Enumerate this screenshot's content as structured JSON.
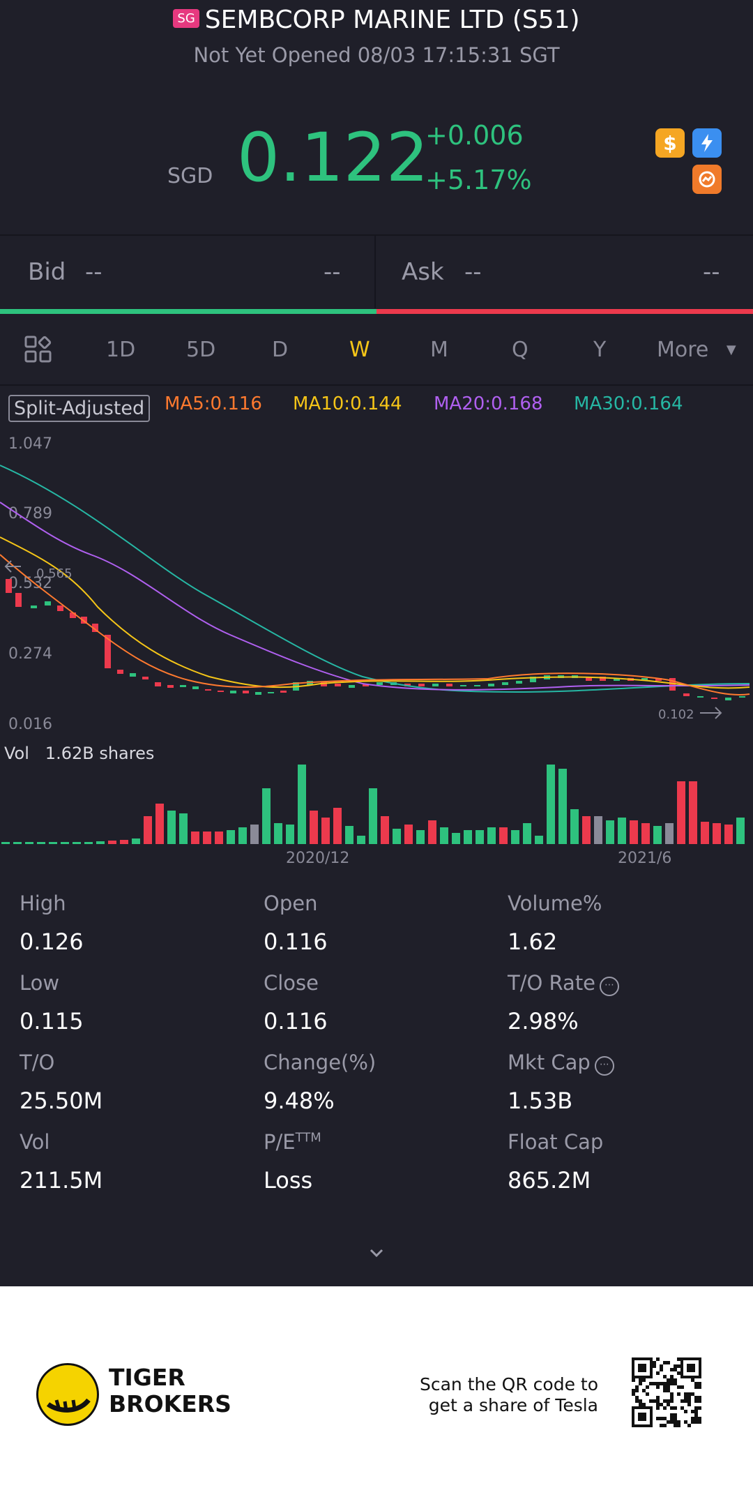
{
  "header": {
    "market_badge": "SG",
    "title": "SEMBCORP MARINE LTD (S51)",
    "status": "Not Yet Opened 08/03 17:15:31 SGT",
    "currency": "SGD",
    "price": "0.122",
    "change": "+0.006",
    "change_pct": "+5.17%"
  },
  "quote": {
    "bid_label": "Bid",
    "bid_price": "--",
    "bid_size": "--",
    "ask_label": "Ask",
    "ask_price": "--",
    "ask_size": "--"
  },
  "tabs": [
    {
      "label": "1D"
    },
    {
      "label": "5D"
    },
    {
      "label": "D"
    },
    {
      "label": "W"
    },
    {
      "label": "M"
    },
    {
      "label": "Q"
    },
    {
      "label": "Y"
    },
    {
      "label": "More"
    }
  ],
  "active_tab": "W",
  "legend": {
    "split": "Split-Adjusted",
    "ma5": "MA5:0.116",
    "ma10": "MA10:0.144",
    "ma20": "MA20:0.168",
    "ma30": "MA30:0.164"
  },
  "colors": {
    "up": "#2ec27e",
    "down": "#ec3a4d",
    "ma5": "#ff7a2f",
    "ma10": "#f5c518",
    "ma20": "#b060f0",
    "ma30": "#26b7a4",
    "active_tab": "#f5c518"
  },
  "chart_data": {
    "type": "candlestick",
    "y_ticks": [
      "1.047",
      "0.789",
      "0.532",
      "0.274",
      "0.016"
    ],
    "ylim": [
      0.016,
      1.047
    ],
    "x_ticks": [
      "2020/12",
      "2021/6"
    ],
    "high_marker": "0.565",
    "low_marker": "0.102",
    "volume_label": "Vol",
    "volume_value": "1.62B shares"
  },
  "stats": [
    {
      "label": "High",
      "value": "0.126"
    },
    {
      "label": "Open",
      "value": "0.116"
    },
    {
      "label": "Volume%",
      "value": "1.62"
    },
    {
      "label": "Low",
      "value": "0.115"
    },
    {
      "label": "Close",
      "value": "0.116"
    },
    {
      "label": "T/O Rate",
      "value": "2.98%"
    },
    {
      "label": "T/O",
      "value": "25.50M"
    },
    {
      "label": "Change(%)",
      "value": "9.48%"
    },
    {
      "label": "Mkt Cap",
      "value": "1.53B"
    },
    {
      "label": "Vol",
      "value": "211.5M"
    },
    {
      "label": "P/E",
      "label_sup": "TTM",
      "value": "Loss"
    },
    {
      "label": "Float Cap",
      "value": "865.2M"
    }
  ],
  "footer": {
    "brand_line1": "TIGER",
    "brand_line2": "BROKERS",
    "promo_line1": "Scan the QR code to",
    "promo_line2": "get a share of Tesla"
  }
}
